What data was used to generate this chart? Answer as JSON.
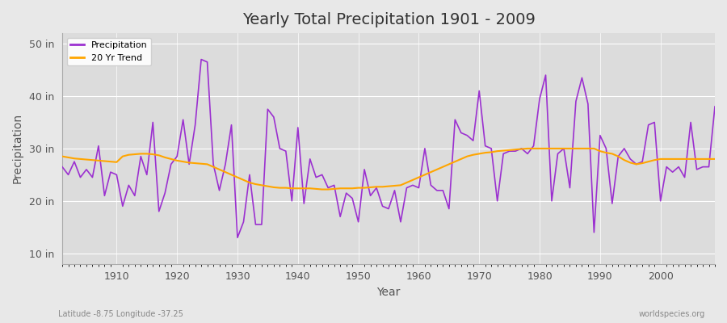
{
  "title": "Yearly Total Precipitation 1901 - 2009",
  "xlabel": "Year",
  "ylabel": "Precipitation",
  "subtitle": "Latitude -8.75 Longitude -37.25",
  "watermark": "worldspecies.org",
  "ylim": [
    8,
    52
  ],
  "yticks": [
    10,
    20,
    30,
    40,
    50
  ],
  "ytick_labels": [
    "10 in",
    "20 in",
    "30 in",
    "40 in",
    "50 in"
  ],
  "precip_color": "#9b30d0",
  "trend_color": "#FFA500",
  "bg_color": "#e8e8e8",
  "plot_bg_color": "#dcdcdc",
  "grid_color": "#ffffff",
  "years": [
    1901,
    1902,
    1903,
    1904,
    1905,
    1906,
    1907,
    1908,
    1909,
    1910,
    1911,
    1912,
    1913,
    1914,
    1915,
    1916,
    1917,
    1918,
    1919,
    1920,
    1921,
    1922,
    1923,
    1924,
    1925,
    1926,
    1927,
    1928,
    1929,
    1930,
    1931,
    1932,
    1933,
    1934,
    1935,
    1936,
    1937,
    1938,
    1939,
    1940,
    1941,
    1942,
    1943,
    1944,
    1945,
    1946,
    1947,
    1948,
    1949,
    1950,
    1951,
    1952,
    1953,
    1954,
    1955,
    1956,
    1957,
    1958,
    1959,
    1960,
    1961,
    1962,
    1963,
    1964,
    1965,
    1966,
    1967,
    1968,
    1969,
    1970,
    1971,
    1972,
    1973,
    1974,
    1975,
    1976,
    1977,
    1978,
    1979,
    1980,
    1981,
    1982,
    1983,
    1984,
    1985,
    1986,
    1987,
    1988,
    1989,
    1990,
    1991,
    1992,
    1993,
    1994,
    1995,
    1996,
    1997,
    1998,
    1999,
    2000,
    2001,
    2002,
    2003,
    2004,
    2005,
    2006,
    2007,
    2008,
    2009
  ],
  "precip": [
    26.5,
    25.0,
    27.5,
    24.5,
    26.0,
    24.5,
    30.5,
    21.0,
    25.5,
    25.0,
    19.0,
    23.0,
    21.0,
    28.5,
    25.0,
    35.0,
    18.0,
    21.5,
    27.0,
    28.5,
    35.5,
    27.0,
    34.5,
    47.0,
    46.5,
    27.0,
    22.0,
    27.0,
    34.5,
    13.0,
    16.0,
    25.0,
    15.5,
    15.5,
    37.5,
    36.0,
    30.0,
    29.5,
    20.0,
    34.0,
    19.5,
    28.0,
    24.5,
    25.0,
    22.5,
    23.0,
    17.0,
    21.5,
    20.5,
    16.0,
    26.0,
    21.0,
    22.5,
    19.0,
    18.5,
    22.0,
    16.0,
    22.5,
    23.0,
    22.5,
    30.0,
    23.0,
    22.0,
    22.0,
    18.5,
    35.5,
    33.0,
    32.5,
    31.5,
    41.0,
    30.5,
    30.0,
    20.0,
    29.0,
    29.5,
    29.5,
    30.0,
    29.0,
    30.5,
    39.5,
    44.0,
    20.0,
    29.0,
    30.0,
    22.5,
    39.0,
    43.5,
    38.5,
    14.0,
    32.5,
    30.0,
    19.5,
    28.5,
    30.0,
    28.0,
    27.0,
    27.5,
    34.5,
    35.0,
    20.0,
    26.5,
    25.5,
    26.5,
    24.5,
    35.0,
    26.0,
    26.5,
    26.5,
    38.0
  ],
  "trend": [
    28.5,
    28.3,
    28.1,
    28.0,
    27.9,
    27.8,
    27.7,
    27.6,
    27.5,
    27.4,
    28.5,
    28.8,
    28.9,
    29.0,
    29.0,
    28.9,
    28.7,
    28.3,
    28.0,
    27.7,
    27.5,
    27.3,
    27.2,
    27.1,
    27.0,
    26.5,
    26.0,
    25.5,
    25.0,
    24.5,
    24.0,
    23.5,
    23.2,
    23.0,
    22.8,
    22.6,
    22.5,
    22.5,
    22.4,
    22.4,
    22.4,
    22.4,
    22.3,
    22.2,
    22.2,
    22.3,
    22.4,
    22.4,
    22.4,
    22.5,
    22.5,
    22.6,
    22.7,
    22.7,
    22.8,
    22.9,
    23.0,
    23.5,
    24.0,
    24.5,
    25.0,
    25.5,
    26.0,
    26.5,
    27.0,
    27.5,
    28.0,
    28.5,
    28.8,
    29.0,
    29.2,
    29.3,
    29.5,
    29.6,
    29.7,
    29.8,
    29.9,
    30.0,
    30.0,
    30.0,
    30.0,
    30.0,
    30.0,
    30.0,
    30.0,
    30.0,
    30.0,
    30.0,
    30.0,
    29.5,
    29.2,
    29.0,
    28.5,
    27.8,
    27.3,
    27.0,
    27.2,
    27.5,
    27.8,
    28.0,
    28.0,
    28.0,
    28.0,
    28.0,
    28.0,
    28.0,
    28.0,
    28.0,
    28.0
  ]
}
